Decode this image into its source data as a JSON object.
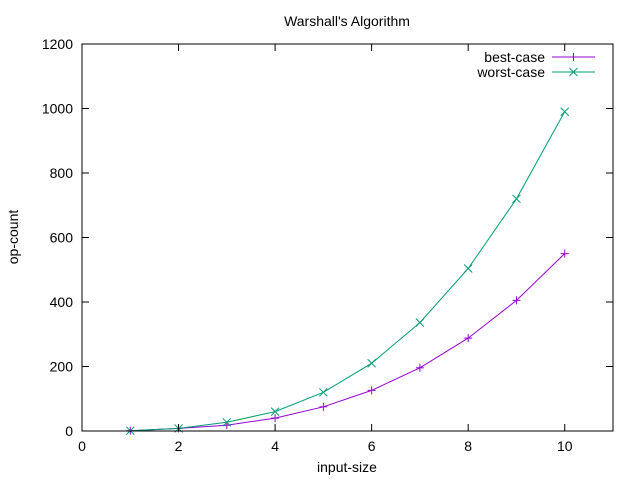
{
  "chart_data": {
    "type": "line",
    "title": "Warshall's Algorithm",
    "xlabel": "input-size",
    "ylabel": "op-count",
    "xlim": [
      0,
      11
    ],
    "ylim": [
      0,
      1200
    ],
    "xticks": [
      0,
      2,
      4,
      6,
      8,
      10
    ],
    "yticks": [
      0,
      200,
      400,
      600,
      800,
      1000,
      1200
    ],
    "grid": false,
    "legend_position": "top-right",
    "x": [
      1,
      2,
      3,
      4,
      5,
      6,
      7,
      8,
      9,
      10
    ],
    "series": [
      {
        "name": "best-case",
        "color": "#9400d3",
        "marker": "plus",
        "values": [
          1,
          8,
          18,
          40,
          75,
          126,
          196,
          288,
          405,
          550
        ]
      },
      {
        "name": "worst-case",
        "color": "#009e73",
        "marker": "cross",
        "values": [
          1,
          8,
          27,
          60,
          120,
          210,
          336,
          504,
          720,
          990
        ]
      }
    ]
  }
}
